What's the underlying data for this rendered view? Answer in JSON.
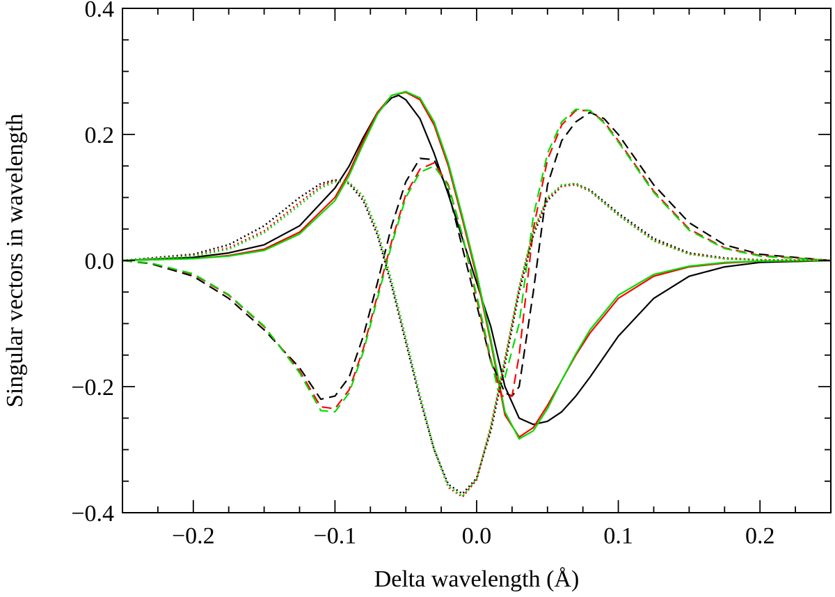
{
  "chart_data": {
    "type": "line",
    "title": "",
    "xlabel": "Delta wavelength (Å)",
    "ylabel": "Singular vectors in wavelength",
    "xlim": [
      -0.25,
      0.25
    ],
    "ylim": [
      -0.4,
      0.4
    ],
    "x_ticks": [
      -0.2,
      -0.1,
      0.0,
      0.1,
      0.2
    ],
    "x_tick_labels": [
      "−0.2",
      "−0.1",
      "0.0",
      "0.1",
      "0.2"
    ],
    "y_ticks": [
      -0.4,
      -0.2,
      0.0,
      0.2,
      0.4
    ],
    "y_tick_labels": [
      "−0.4",
      "−0.2",
      "0.0",
      "0.2",
      "0.4"
    ],
    "grid": false,
    "series": [
      {
        "name": "solid-black",
        "color": "#000000",
        "style": "solid",
        "x": [
          -0.25,
          -0.2,
          -0.175,
          -0.15,
          -0.125,
          -0.1,
          -0.09,
          -0.08,
          -0.07,
          -0.06,
          -0.055,
          -0.05,
          -0.04,
          -0.03,
          -0.02,
          -0.01,
          0.0,
          0.01,
          0.02,
          0.03,
          0.04,
          0.05,
          0.06,
          0.07,
          0.08,
          0.1,
          0.125,
          0.15,
          0.175,
          0.2,
          0.25
        ],
        "y": [
          0.0,
          0.005,
          0.012,
          0.025,
          0.055,
          0.115,
          0.15,
          0.195,
          0.235,
          0.258,
          0.262,
          0.255,
          0.225,
          0.17,
          0.105,
          0.035,
          -0.035,
          -0.105,
          -0.2,
          -0.25,
          -0.26,
          -0.255,
          -0.24,
          -0.215,
          -0.185,
          -0.12,
          -0.06,
          -0.025,
          -0.01,
          -0.003,
          0.0
        ]
      },
      {
        "name": "solid-red",
        "color": "#ff0000",
        "style": "solid",
        "x": [
          -0.25,
          -0.2,
          -0.175,
          -0.15,
          -0.125,
          -0.1,
          -0.09,
          -0.08,
          -0.07,
          -0.06,
          -0.05,
          -0.04,
          -0.03,
          -0.02,
          -0.01,
          0.0,
          0.01,
          0.02,
          0.03,
          0.04,
          0.05,
          0.06,
          0.07,
          0.08,
          0.1,
          0.125,
          0.15,
          0.175,
          0.2,
          0.25
        ],
        "y": [
          0.0,
          0.003,
          0.008,
          0.018,
          0.045,
          0.1,
          0.14,
          0.19,
          0.235,
          0.262,
          0.267,
          0.255,
          0.215,
          0.15,
          0.065,
          -0.025,
          -0.13,
          -0.245,
          -0.28,
          -0.265,
          -0.23,
          -0.19,
          -0.15,
          -0.115,
          -0.06,
          -0.025,
          -0.01,
          -0.004,
          -0.001,
          0.0
        ]
      },
      {
        "name": "solid-green",
        "color": "#00dd00",
        "style": "solid",
        "x": [
          -0.25,
          -0.2,
          -0.175,
          -0.15,
          -0.125,
          -0.1,
          -0.09,
          -0.08,
          -0.07,
          -0.06,
          -0.05,
          -0.04,
          -0.03,
          -0.02,
          -0.01,
          0.0,
          0.01,
          0.02,
          0.03,
          0.04,
          0.05,
          0.06,
          0.07,
          0.08,
          0.1,
          0.125,
          0.15,
          0.175,
          0.2,
          0.25
        ],
        "y": [
          0.0,
          0.003,
          0.007,
          0.016,
          0.042,
          0.095,
          0.135,
          0.185,
          0.232,
          0.262,
          0.268,
          0.258,
          0.22,
          0.155,
          0.07,
          -0.02,
          -0.125,
          -0.24,
          -0.283,
          -0.27,
          -0.235,
          -0.19,
          -0.148,
          -0.11,
          -0.055,
          -0.022,
          -0.009,
          -0.003,
          -0.001,
          0.0
        ]
      },
      {
        "name": "dashed-black",
        "color": "#000000",
        "style": "dashed",
        "x": [
          -0.25,
          -0.23,
          -0.2,
          -0.175,
          -0.15,
          -0.125,
          -0.11,
          -0.1,
          -0.09,
          -0.08,
          -0.07,
          -0.06,
          -0.05,
          -0.04,
          -0.03,
          -0.02,
          -0.01,
          0.0,
          0.01,
          0.02,
          0.025,
          0.03,
          0.04,
          0.05,
          0.06,
          0.07,
          0.08,
          0.09,
          0.1,
          0.125,
          0.15,
          0.175,
          0.2,
          0.25
        ],
        "y": [
          0.0,
          -0.005,
          -0.025,
          -0.06,
          -0.11,
          -0.17,
          -0.22,
          -0.215,
          -0.185,
          -0.12,
          -0.035,
          0.055,
          0.125,
          0.162,
          0.16,
          0.11,
          0.02,
          -0.07,
          -0.16,
          -0.21,
          -0.215,
          -0.2,
          -0.05,
          0.12,
          0.19,
          0.22,
          0.235,
          0.225,
          0.2,
          0.12,
          0.06,
          0.025,
          0.01,
          0.0
        ]
      },
      {
        "name": "dashed-red",
        "color": "#ff0000",
        "style": "dashed",
        "x": [
          -0.25,
          -0.23,
          -0.2,
          -0.175,
          -0.15,
          -0.125,
          -0.11,
          -0.1,
          -0.09,
          -0.08,
          -0.07,
          -0.06,
          -0.05,
          -0.04,
          -0.03,
          -0.02,
          -0.01,
          0.0,
          0.01,
          0.018,
          0.025,
          0.03,
          0.04,
          0.05,
          0.06,
          0.07,
          0.08,
          0.09,
          0.1,
          0.125,
          0.15,
          0.175,
          0.2,
          0.25
        ],
        "y": [
          0.0,
          -0.004,
          -0.022,
          -0.055,
          -0.105,
          -0.175,
          -0.232,
          -0.235,
          -0.205,
          -0.14,
          -0.055,
          0.03,
          0.105,
          0.145,
          0.155,
          0.12,
          0.04,
          -0.06,
          -0.16,
          -0.215,
          -0.215,
          -0.15,
          0.05,
          0.16,
          0.215,
          0.238,
          0.238,
          0.22,
          0.19,
          0.11,
          0.05,
          0.02,
          0.008,
          0.0
        ]
      },
      {
        "name": "dashed-green",
        "color": "#00dd00",
        "style": "dashed",
        "x": [
          -0.25,
          -0.23,
          -0.2,
          -0.175,
          -0.15,
          -0.125,
          -0.11,
          -0.1,
          -0.09,
          -0.08,
          -0.07,
          -0.06,
          -0.05,
          -0.04,
          -0.03,
          -0.02,
          -0.01,
          0.0,
          0.01,
          0.015,
          0.02,
          0.03,
          0.04,
          0.05,
          0.06,
          0.07,
          0.08,
          0.09,
          0.1,
          0.125,
          0.15,
          0.175,
          0.2,
          0.25
        ],
        "y": [
          0.0,
          -0.004,
          -0.021,
          -0.054,
          -0.104,
          -0.178,
          -0.238,
          -0.24,
          -0.21,
          -0.145,
          -0.06,
          0.025,
          0.1,
          0.14,
          0.15,
          0.118,
          0.04,
          -0.055,
          -0.155,
          -0.205,
          -0.185,
          -0.1,
          0.07,
          0.17,
          0.22,
          0.24,
          0.238,
          0.218,
          0.188,
          0.108,
          0.048,
          0.019,
          0.007,
          0.0
        ]
      },
      {
        "name": "dotted-black",
        "color": "#000000",
        "style": "dotted",
        "x": [
          -0.25,
          -0.2,
          -0.175,
          -0.15,
          -0.125,
          -0.11,
          -0.1,
          -0.09,
          -0.08,
          -0.07,
          -0.06,
          -0.05,
          -0.04,
          -0.03,
          -0.02,
          -0.01,
          0.0,
          0.01,
          0.02,
          0.03,
          0.04,
          0.05,
          0.06,
          0.07,
          0.08,
          0.1,
          0.125,
          0.15,
          0.175,
          0.2,
          0.25
        ],
        "y": [
          0.0,
          0.01,
          0.025,
          0.055,
          0.1,
          0.122,
          0.128,
          0.122,
          0.095,
          0.04,
          -0.04,
          -0.13,
          -0.22,
          -0.3,
          -0.355,
          -0.37,
          -0.345,
          -0.27,
          -0.165,
          -0.05,
          0.04,
          0.095,
          0.118,
          0.122,
          0.112,
          0.075,
          0.035,
          0.012,
          0.004,
          0.001,
          0.0
        ]
      },
      {
        "name": "dotted-red",
        "color": "#ff0000",
        "style": "dotted",
        "x": [
          -0.25,
          -0.2,
          -0.175,
          -0.15,
          -0.125,
          -0.11,
          -0.1,
          -0.09,
          -0.08,
          -0.07,
          -0.06,
          -0.05,
          -0.04,
          -0.03,
          -0.02,
          -0.01,
          0.0,
          0.01,
          0.02,
          0.03,
          0.04,
          0.05,
          0.06,
          0.07,
          0.08,
          0.1,
          0.125,
          0.15,
          0.175,
          0.2,
          0.25
        ],
        "y": [
          0.0,
          0.008,
          0.02,
          0.047,
          0.092,
          0.118,
          0.127,
          0.124,
          0.1,
          0.045,
          -0.035,
          -0.125,
          -0.215,
          -0.3,
          -0.36,
          -0.375,
          -0.348,
          -0.265,
          -0.158,
          -0.045,
          0.045,
          0.098,
          0.118,
          0.12,
          0.11,
          0.072,
          0.032,
          0.011,
          0.003,
          0.001,
          0.0
        ]
      },
      {
        "name": "dotted-green",
        "color": "#00dd00",
        "style": "dotted",
        "x": [
          -0.25,
          -0.2,
          -0.175,
          -0.15,
          -0.125,
          -0.11,
          -0.1,
          -0.09,
          -0.08,
          -0.07,
          -0.06,
          -0.05,
          -0.04,
          -0.03,
          -0.02,
          -0.01,
          0.0,
          0.01,
          0.02,
          0.03,
          0.04,
          0.05,
          0.06,
          0.07,
          0.08,
          0.1,
          0.125,
          0.15,
          0.175,
          0.2,
          0.25
        ],
        "y": [
          0.0,
          0.007,
          0.018,
          0.044,
          0.088,
          0.115,
          0.125,
          0.124,
          0.102,
          0.048,
          -0.032,
          -0.122,
          -0.213,
          -0.298,
          -0.358,
          -0.374,
          -0.347,
          -0.262,
          -0.155,
          -0.042,
          0.048,
          0.1,
          0.12,
          0.122,
          0.111,
          0.072,
          0.031,
          0.01,
          0.003,
          0.001,
          0.0
        ]
      }
    ]
  }
}
